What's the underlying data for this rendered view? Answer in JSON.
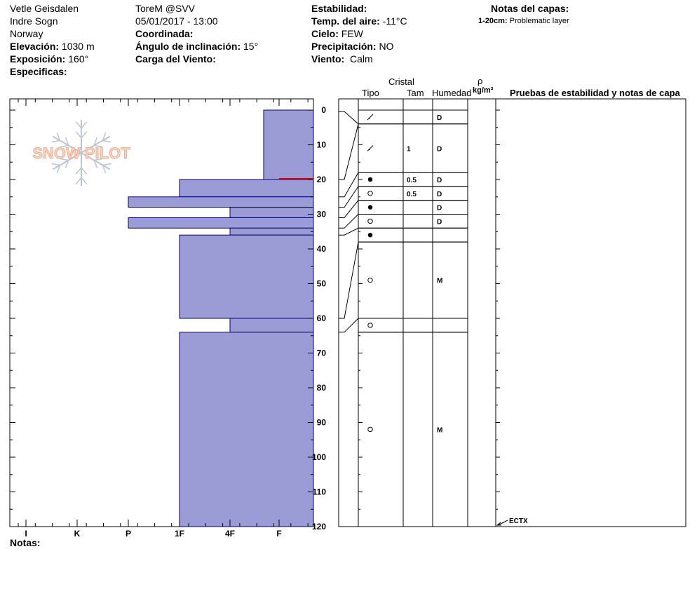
{
  "header": {
    "location": "Vetle Geisdalen",
    "region": "Indre Sogn",
    "country": "Norway",
    "elevation_label": "Elevación:",
    "elevation_value": "1030 m",
    "aspect_label": "Exposición:",
    "aspect_value": "160°",
    "specifics_label": "Especificas:",
    "observer": "ToreM @SVV",
    "datetime": "05/01/2017 - 13:00",
    "coord_label": "Coordinada:",
    "slope_label": "Ángulo de inclinación:",
    "slope_value": "15°",
    "wind_load_label": "Carga del Viento:",
    "stability_label": "Estabilidad:",
    "air_temp_label": "Temp. del aire:",
    "air_temp_value": "-11°C",
    "sky_label": "Cielo:",
    "sky_value": "FEW",
    "precip_label": "Precipitación:",
    "precip_value": "NO",
    "wind_label": "Viento:",
    "wind_value": "Calm",
    "layer_notes_title": "Notas del capas:",
    "layer_note_range": "1-20cm:",
    "layer_note_text": "Problematic layer"
  },
  "logo": {
    "text": "SNOW PILOT"
  },
  "footer": {
    "notes_label": "Notas:"
  },
  "columns": {
    "crystal": "Cristal",
    "type": "Tipo",
    "size": "Tam",
    "moisture": "Humedad",
    "rho": "ρ",
    "density_unit": "kg/m³",
    "tests": "Pruebas de estabilidad y notas de capa"
  },
  "chart_data": {
    "type": "bar",
    "orientation": "horizontal",
    "title": "",
    "ylabel": "",
    "xlabel": "",
    "ylim": [
      0,
      120
    ],
    "y_ticks": [
      0,
      10,
      20,
      30,
      40,
      50,
      60,
      70,
      80,
      90,
      100,
      110,
      120
    ],
    "hardness_scale": [
      "I",
      "K",
      "P",
      "1F",
      "4F",
      "F"
    ],
    "hardness_ticks": [
      "F",
      "4F",
      "1F",
      "P",
      "K",
      "I"
    ],
    "bar_color": "#9b9bd6",
    "edge_color": "#00007f",
    "problem_layer_color": "#cc0000",
    "problem_layer_depth": 20,
    "layers": [
      {
        "top": 0,
        "bottom": 20,
        "hardness_top": "F",
        "hardness_bottom": "F+",
        "crystal": "decomposing",
        "size": "",
        "moisture": "D"
      },
      {
        "top": 20,
        "bottom": 25,
        "hardness": "1F",
        "crystal": "rounded",
        "size": "0.5",
        "moisture": "D"
      },
      {
        "top": 25,
        "bottom": 28,
        "hardness": "P",
        "crystal": "rounded",
        "size": "0.5",
        "moisture": "D"
      },
      {
        "top": 28,
        "bottom": 31,
        "hardness": "4F",
        "crystal": "rounded",
        "size": "",
        "moisture": "D"
      },
      {
        "top": 31,
        "bottom": 34,
        "hardness": "P",
        "crystal": "rounded",
        "size": "",
        "moisture": "D"
      },
      {
        "top": 34,
        "bottom": 36,
        "hardness": "4F",
        "crystal": "rounded",
        "size": "",
        "moisture": ""
      },
      {
        "top": 36,
        "bottom": 60,
        "hardness": "1F",
        "crystal": "faceted",
        "size": "",
        "moisture": "M"
      },
      {
        "top": 60,
        "bottom": 64,
        "hardness": "4F",
        "crystal": "faceted",
        "size": "",
        "moisture": ""
      },
      {
        "top": 64,
        "bottom": 120,
        "hardness": "1F",
        "crystal": "faceted",
        "size": "",
        "moisture": "M"
      }
    ],
    "grid_rows": [
      {
        "top": 0,
        "bottom": 4,
        "type_symbol": "decomposing",
        "size": "",
        "moisture": "D"
      },
      {
        "top": 4,
        "bottom": 18,
        "type_symbol": "decomposing",
        "size": "1",
        "moisture": "D"
      },
      {
        "top": 18,
        "bottom": 22,
        "type_symbol": "rounded",
        "size": "0.5",
        "moisture": "D"
      },
      {
        "top": 22,
        "bottom": 26,
        "type_symbol": "faceted",
        "size": "0.5",
        "moisture": "D"
      },
      {
        "top": 26,
        "bottom": 30,
        "type_symbol": "rounded",
        "size": "",
        "moisture": "D"
      },
      {
        "top": 30,
        "bottom": 34,
        "type_symbol": "faceted",
        "size": "",
        "moisture": "D"
      },
      {
        "top": 34,
        "bottom": 38,
        "type_symbol": "rounded",
        "size": "",
        "moisture": ""
      },
      {
        "top": 38,
        "bottom": 60,
        "type_symbol": "faceted",
        "size": "",
        "moisture": "M"
      },
      {
        "top": 60,
        "bottom": 64,
        "type_symbol": "faceted",
        "size": "",
        "moisture": ""
      },
      {
        "top": 64,
        "bottom": 120,
        "type_symbol": "faceted",
        "size": "",
        "moisture": "M"
      }
    ],
    "test_annotation": {
      "text": "ECTX",
      "depth": 120
    }
  }
}
